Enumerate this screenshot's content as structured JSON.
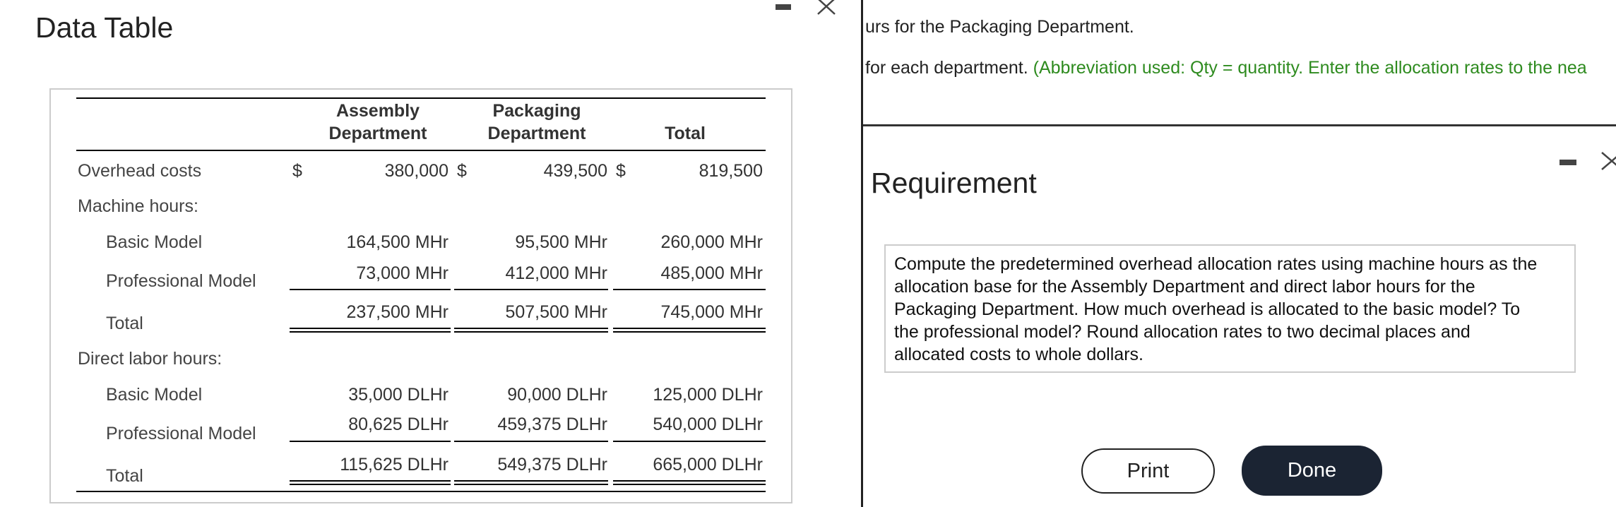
{
  "left_panel": {
    "title": "Data Table",
    "table": {
      "columns": [
        [
          "Assembly",
          "Department"
        ],
        [
          "Packaging",
          "Department"
        ],
        [
          "Total"
        ]
      ],
      "currency_symbol": "$",
      "rows": [
        {
          "label": "Overhead costs",
          "cells": [
            "380,000",
            "439,500",
            "819,500"
          ]
        },
        {
          "label": "Machine hours:",
          "cells": []
        },
        {
          "label": "Basic Model",
          "cells": [
            "164,500 MHr",
            "95,500 MHr",
            "260,000 MHr"
          ]
        },
        {
          "label": "Professional Model",
          "cells": [
            "73,000 MHr",
            "412,000 MHr",
            "485,000 MHr"
          ]
        },
        {
          "label": "Total",
          "cells": [
            "237,500 MHr",
            "507,500 MHr",
            "745,000 MHr"
          ]
        },
        {
          "label": "Direct labor hours:",
          "cells": []
        },
        {
          "label": "Basic Model",
          "cells": [
            "35,000 DLHr",
            "90,000 DLHr",
            "125,000 DLHr"
          ]
        },
        {
          "label": "Professional Model",
          "cells": [
            "80,625 DLHr",
            "459,375 DLHr",
            "540,000 DLHr"
          ]
        },
        {
          "label": "Total",
          "cells": [
            "115,625 DLHr",
            "549,375 DLHr",
            "665,000 DLHr"
          ]
        }
      ]
    }
  },
  "right_panel": {
    "line_1": "urs for the Packaging Department.",
    "line_2": "for each department.",
    "line_2_hint": "(Abbreviation used: Qty = quantity. Enter the allocation rates to the nea",
    "heading": "Requirement",
    "requirement_lines": [
      "Compute the predetermined overhead allocation rates using machine hours as the",
      "allocation base for the Assembly Department and direct labor hours for the",
      "Packaging Department. How much overhead is allocated to the basic model? To",
      "the professional model? Round allocation rates to two decimal places and",
      "allocated costs to whole dollars."
    ],
    "print_button": "Print",
    "done_button": "Done"
  }
}
